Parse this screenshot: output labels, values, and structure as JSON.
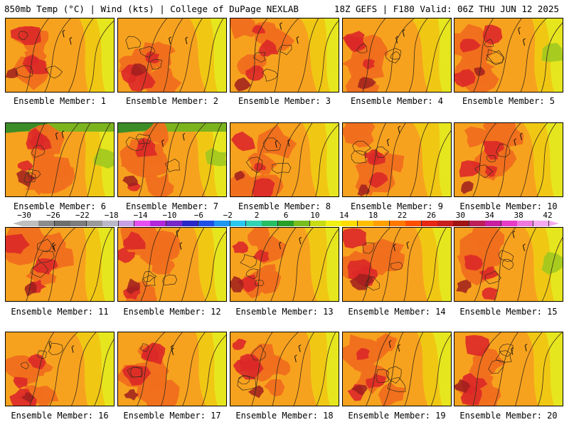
{
  "header": {
    "left": "850mb Temp (°C) | Wind (kts) | College of DuPage NEXLAB",
    "right": "18Z GEFS | F180 Valid: 06Z THU JUN 12 2025"
  },
  "members": [
    {
      "label": "Ensemble Member: 1"
    },
    {
      "label": "Ensemble Member: 2"
    },
    {
      "label": "Ensemble Member: 3"
    },
    {
      "label": "Ensemble Member: 4"
    },
    {
      "label": "Ensemble Member: 5"
    },
    {
      "label": "Ensemble Member: 6"
    },
    {
      "label": "Ensemble Member: 7"
    },
    {
      "label": "Ensemble Member: 8"
    },
    {
      "label": "Ensemble Member: 9"
    },
    {
      "label": "Ensemble Member: 10"
    },
    {
      "label": "Ensemble Member: 11"
    },
    {
      "label": "Ensemble Member: 12"
    },
    {
      "label": "Ensemble Member: 13"
    },
    {
      "label": "Ensemble Member: 14"
    },
    {
      "label": "Ensemble Member: 15"
    },
    {
      "label": "Ensemble Member: 16"
    },
    {
      "label": "Ensemble Member: 17"
    },
    {
      "label": "Ensemble Member: 18"
    },
    {
      "label": "Ensemble Member: 19"
    },
    {
      "label": "Ensemble Member: 20"
    }
  ],
  "colorbar": {
    "ticks": [
      "−30",
      "−26",
      "−22",
      "−18",
      "−14",
      "−10",
      "−6",
      "−2",
      "2",
      "6",
      "10",
      "14",
      "18",
      "22",
      "26",
      "30",
      "34",
      "38",
      "42"
    ],
    "colors": [
      "#bfbfbf",
      "#8c8c8c",
      "#6e6e6e",
      "#7d7d7d",
      "#9a9a9a",
      "#b9b9c8",
      "#c8a0e6",
      "#e650f0",
      "#b428dc",
      "#7828c8",
      "#2828c8",
      "#1e50e6",
      "#1e96f0",
      "#28c8f0",
      "#32d2b4",
      "#28be64",
      "#28a028",
      "#78be1e",
      "#c8dc14",
      "#f0f014",
      "#ffdc00",
      "#ffbe00",
      "#ffa000",
      "#ff7800",
      "#ff5000",
      "#e62814",
      "#c81e1e",
      "#a01414",
      "#be1e5a",
      "#c81ea0",
      "#e63cc8",
      "#f078dc",
      "#f5aaf0"
    ]
  },
  "colors": {
    "cool": "#e6e61e",
    "mild": "#f0c814",
    "warm": "#f7a21e",
    "hot": "#f06e1e",
    "veryhot": "#dc2828",
    "extreme": "#a01e1e",
    "cold": "#a0c81e",
    "contour": "#3a2a1a"
  }
}
